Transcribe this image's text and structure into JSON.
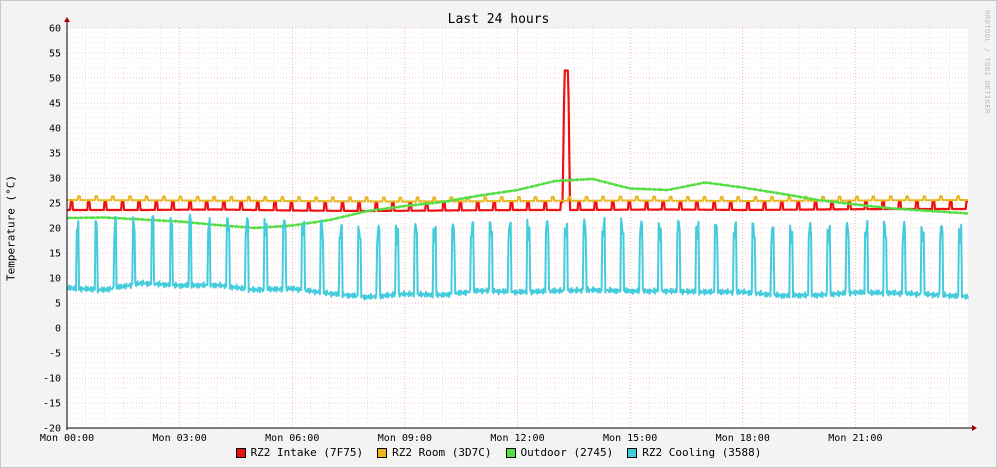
{
  "chart_data": {
    "type": "line",
    "title": "Last 24 hours",
    "xlabel": "",
    "ylabel": "Temperature (°C)",
    "watermark": "RRDTOOL / TOBI OETIKER",
    "ylim": [
      -20,
      60
    ],
    "yticks": [
      60,
      55,
      50,
      45,
      40,
      35,
      30,
      25,
      20,
      15,
      10,
      5,
      0,
      -5,
      -10,
      -15,
      -20
    ],
    "xlim_hours": [
      0,
      24
    ],
    "xticks": [
      {
        "hour": 0,
        "label": "Mon 00:00"
      },
      {
        "hour": 3,
        "label": "Mon 03:00"
      },
      {
        "hour": 6,
        "label": "Mon 06:00"
      },
      {
        "hour": 9,
        "label": "Mon 09:00"
      },
      {
        "hour": 12,
        "label": "Mon 12:00"
      },
      {
        "hour": 15,
        "label": "Mon 15:00"
      },
      {
        "hour": 18,
        "label": "Mon 18:00"
      },
      {
        "hour": 21,
        "label": "Mon 21:00"
      }
    ],
    "grid": true,
    "legend_position": "bottom",
    "series": [
      {
        "name": "RZ2 Intake (7F75)",
        "color": "#ee1111",
        "x": [
          0,
          2,
          4,
          6,
          8,
          10,
          12,
          13.2,
          13.25,
          13.35,
          13.4,
          16,
          18,
          20,
          22,
          24
        ],
        "y": [
          23.6,
          23.6,
          23.7,
          23.5,
          23.4,
          23.5,
          23.6,
          23.6,
          51.5,
          51.5,
          23.6,
          23.7,
          23.6,
          23.7,
          23.8,
          23.8
        ],
        "spikes": {
          "period_hours": 0.45,
          "start_hour": 0.1,
          "height": 1.6
        }
      },
      {
        "name": "RZ2 Room (3D7C)",
        "color": "#e8b820",
        "x": [
          0,
          3,
          6,
          9,
          12,
          15,
          18,
          21,
          24
        ],
        "y": [
          25.6,
          25.5,
          25.4,
          25.3,
          25.4,
          25.5,
          25.4,
          25.5,
          25.6
        ],
        "spikes": {
          "period_hours": 0.45,
          "start_hour": 0.3,
          "height": 0.8
        }
      },
      {
        "name": "Outdoor (2745)",
        "color": "#55dd44",
        "x": [
          0,
          1,
          2,
          3,
          4,
          5,
          6,
          7,
          8,
          9,
          10,
          11,
          12,
          13,
          14,
          15,
          16,
          17,
          18,
          19,
          20,
          21,
          22,
          23,
          24
        ],
        "y": [
          22.0,
          22.1,
          21.7,
          21.3,
          20.6,
          20.0,
          20.5,
          21.6,
          23.4,
          24.4,
          25.2,
          26.5,
          27.6,
          29.4,
          29.8,
          27.9,
          27.6,
          29.1,
          28.1,
          26.9,
          25.6,
          24.7,
          23.9,
          23.4,
          22.9
        ]
      },
      {
        "name": "RZ2 Cooling (3588)",
        "color": "#44ccdd",
        "x": [
          0,
          1,
          2,
          3,
          4,
          5,
          6,
          7,
          8,
          9,
          10,
          11,
          12,
          13,
          14,
          15,
          16,
          17,
          18,
          19,
          20,
          21,
          22,
          23,
          24
        ],
        "y": [
          8.0,
          7.6,
          9.0,
          8.5,
          8.6,
          7.6,
          7.9,
          6.9,
          6.2,
          6.8,
          6.6,
          7.5,
          7.2,
          7.4,
          7.6,
          7.4,
          7.4,
          7.2,
          7.2,
          6.5,
          6.6,
          7.1,
          7.0,
          6.7,
          6.3
        ],
        "spikes": {
          "period_hours": 0.5,
          "start_hour": 0.25,
          "height": 12
        }
      }
    ]
  }
}
